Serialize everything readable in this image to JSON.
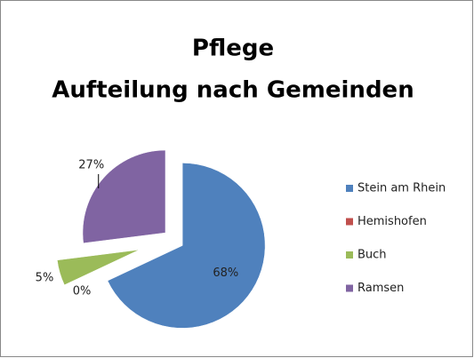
{
  "chart_data": {
    "type": "pie",
    "title": [
      "Pflege",
      "Aufteilung nach Gemeinden"
    ],
    "categories": [
      "Stein am Rhein",
      "Hemishofen",
      "Buch",
      "Ramsen"
    ],
    "values": [
      68,
      0,
      5,
      27
    ],
    "value_labels": [
      "68%",
      "0%",
      "5%",
      "27%"
    ],
    "colors": [
      "#4f81bd",
      "#c0504d",
      "#9bbb59",
      "#8064a2"
    ],
    "legend": "right"
  }
}
